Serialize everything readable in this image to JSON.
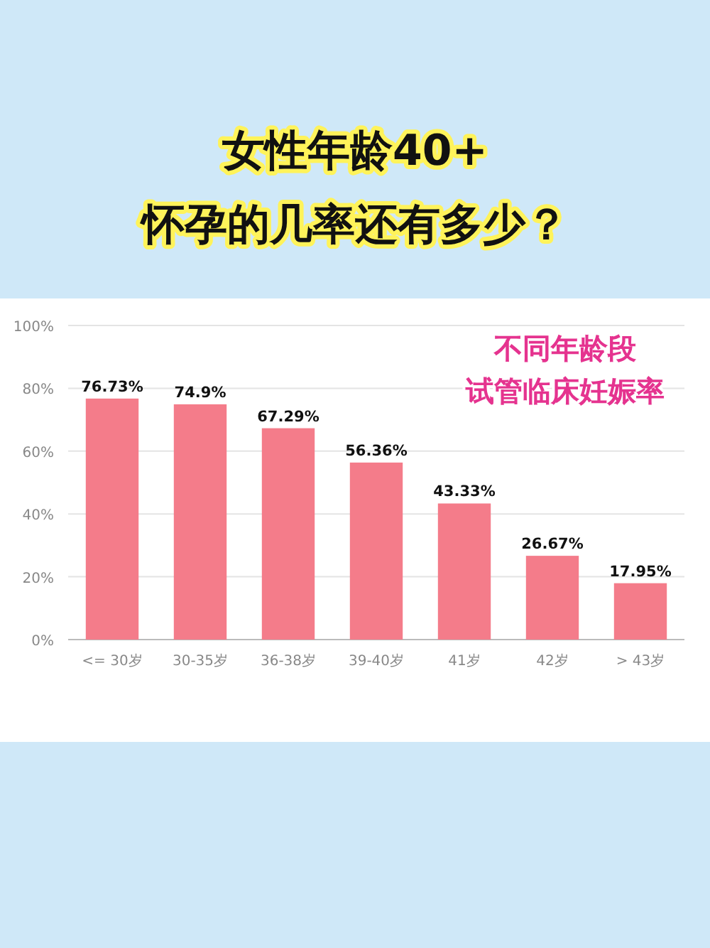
{
  "chart_data": {
    "type": "bar",
    "title": "女性年龄40+\n怀孕的几率还有多少？",
    "subtitle": "不同年龄段",
    "annotations": [
      "试管临床妊娠率"
    ],
    "categories": [
      "<= 30岁",
      "30-35岁",
      "36-38岁",
      "39-40岁",
      "41岁",
      "42岁",
      "> 43岁"
    ],
    "values": [
      76.73,
      74.9,
      67.29,
      56.36,
      43.33,
      26.67,
      17.95
    ],
    "value_labels": [
      "76.73%",
      "74.9%",
      "67.29%",
      "56.36%",
      "43.33%",
      "26.67%",
      "17.95%"
    ],
    "color": "#f47c8a",
    "ylim": [
      0,
      100
    ],
    "yticks": [
      {
        "value": 0,
        "label": "0%"
      },
      {
        "value": 20,
        "label": "20%"
      },
      {
        "value": 40,
        "label": "40%"
      },
      {
        "value": 60,
        "label": "60%"
      },
      {
        "value": 80,
        "label": "80%"
      },
      {
        "value": 100,
        "label": "100%"
      }
    ],
    "grid": "y"
  }
}
